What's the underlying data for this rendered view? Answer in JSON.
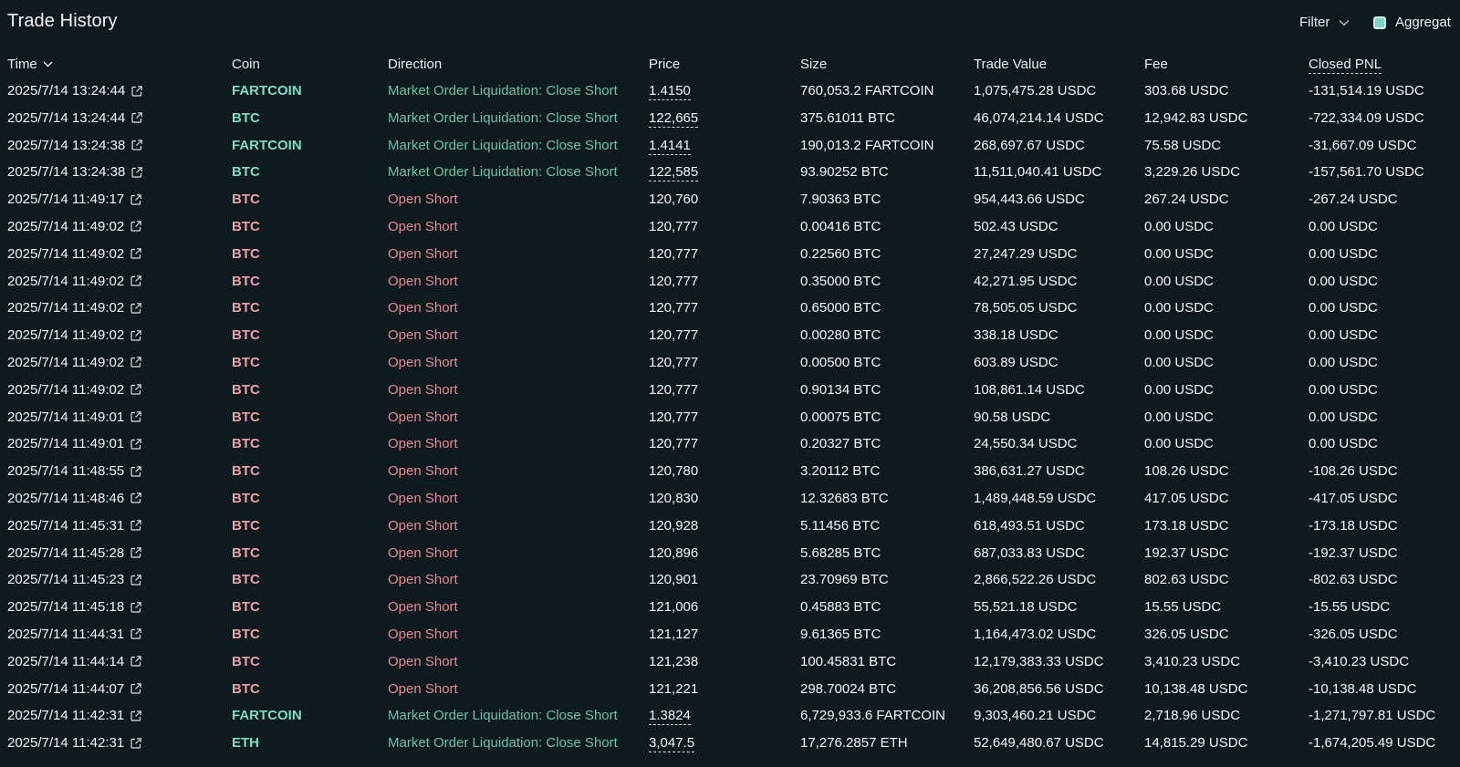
{
  "header": {
    "title": "Trade History",
    "filter_label": "Filter",
    "aggregate_label": "Aggregat",
    "aggregate_checked": true
  },
  "columns": {
    "time": "Time",
    "coin": "Coin",
    "direction": "Direction",
    "price": "Price",
    "size": "Size",
    "trade_value": "Trade Value",
    "fee": "Fee",
    "closed_pnl": "Closed PNL"
  },
  "colors": {
    "background": "#0f1a1f",
    "long_green": "#69c3a4",
    "short_red": "#e68a98",
    "checkbox": "#7ad6c8"
  },
  "rows": [
    {
      "time": "2025/7/14 13:24:44",
      "coin": "FARTCOIN",
      "side": "green",
      "direction": "Market Order Liquidation: Close Short",
      "price": "1.4150",
      "price_dashed": true,
      "size": "760,053.2 FARTCOIN",
      "trade_value": "1,075,475.28 USDC",
      "fee": "303.68 USDC",
      "pnl": "-131,514.19 USDC"
    },
    {
      "time": "2025/7/14 13:24:44",
      "coin": "BTC",
      "side": "green",
      "direction": "Market Order Liquidation: Close Short",
      "price": "122,665",
      "price_dashed": true,
      "size": "375.61011 BTC",
      "trade_value": "46,074,214.14 USDC",
      "fee": "12,942.83 USDC",
      "pnl": "-722,334.09 USDC"
    },
    {
      "time": "2025/7/14 13:24:38",
      "coin": "FARTCOIN",
      "side": "green",
      "direction": "Market Order Liquidation: Close Short",
      "price": "1.4141",
      "price_dashed": true,
      "size": "190,013.2 FARTCOIN",
      "trade_value": "268,697.67 USDC",
      "fee": "75.58 USDC",
      "pnl": "-31,667.09 USDC"
    },
    {
      "time": "2025/7/14 13:24:38",
      "coin": "BTC",
      "side": "green",
      "direction": "Market Order Liquidation: Close Short",
      "price": "122,585",
      "price_dashed": true,
      "size": "93.90252 BTC",
      "trade_value": "11,511,040.41 USDC",
      "fee": "3,229.26 USDC",
      "pnl": "-157,561.70 USDC"
    },
    {
      "time": "2025/7/14 11:49:17",
      "coin": "BTC",
      "side": "red",
      "direction": "Open Short",
      "price": "120,760",
      "price_dashed": false,
      "size": "7.90363 BTC",
      "trade_value": "954,443.66 USDC",
      "fee": "267.24 USDC",
      "pnl": "-267.24 USDC"
    },
    {
      "time": "2025/7/14 11:49:02",
      "coin": "BTC",
      "side": "red",
      "direction": "Open Short",
      "price": "120,777",
      "price_dashed": false,
      "size": "0.00416 BTC",
      "trade_value": "502.43 USDC",
      "fee": "0.00 USDC",
      "pnl": "0.00 USDC"
    },
    {
      "time": "2025/7/14 11:49:02",
      "coin": "BTC",
      "side": "red",
      "direction": "Open Short",
      "price": "120,777",
      "price_dashed": false,
      "size": "0.22560 BTC",
      "trade_value": "27,247.29 USDC",
      "fee": "0.00 USDC",
      "pnl": "0.00 USDC"
    },
    {
      "time": "2025/7/14 11:49:02",
      "coin": "BTC",
      "side": "red",
      "direction": "Open Short",
      "price": "120,777",
      "price_dashed": false,
      "size": "0.35000 BTC",
      "trade_value": "42,271.95 USDC",
      "fee": "0.00 USDC",
      "pnl": "0.00 USDC"
    },
    {
      "time": "2025/7/14 11:49:02",
      "coin": "BTC",
      "side": "red",
      "direction": "Open Short",
      "price": "120,777",
      "price_dashed": false,
      "size": "0.65000 BTC",
      "trade_value": "78,505.05 USDC",
      "fee": "0.00 USDC",
      "pnl": "0.00 USDC"
    },
    {
      "time": "2025/7/14 11:49:02",
      "coin": "BTC",
      "side": "red",
      "direction": "Open Short",
      "price": "120,777",
      "price_dashed": false,
      "size": "0.00280 BTC",
      "trade_value": "338.18 USDC",
      "fee": "0.00 USDC",
      "pnl": "0.00 USDC"
    },
    {
      "time": "2025/7/14 11:49:02",
      "coin": "BTC",
      "side": "red",
      "direction": "Open Short",
      "price": "120,777",
      "price_dashed": false,
      "size": "0.00500 BTC",
      "trade_value": "603.89 USDC",
      "fee": "0.00 USDC",
      "pnl": "0.00 USDC"
    },
    {
      "time": "2025/7/14 11:49:02",
      "coin": "BTC",
      "side": "red",
      "direction": "Open Short",
      "price": "120,777",
      "price_dashed": false,
      "size": "0.90134 BTC",
      "trade_value": "108,861.14 USDC",
      "fee": "0.00 USDC",
      "pnl": "0.00 USDC"
    },
    {
      "time": "2025/7/14 11:49:01",
      "coin": "BTC",
      "side": "red",
      "direction": "Open Short",
      "price": "120,777",
      "price_dashed": false,
      "size": "0.00075 BTC",
      "trade_value": "90.58 USDC",
      "fee": "0.00 USDC",
      "pnl": "0.00 USDC"
    },
    {
      "time": "2025/7/14 11:49:01",
      "coin": "BTC",
      "side": "red",
      "direction": "Open Short",
      "price": "120,777",
      "price_dashed": false,
      "size": "0.20327 BTC",
      "trade_value": "24,550.34 USDC",
      "fee": "0.00 USDC",
      "pnl": "0.00 USDC"
    },
    {
      "time": "2025/7/14 11:48:55",
      "coin": "BTC",
      "side": "red",
      "direction": "Open Short",
      "price": "120,780",
      "price_dashed": false,
      "size": "3.20112 BTC",
      "trade_value": "386,631.27 USDC",
      "fee": "108.26 USDC",
      "pnl": "-108.26 USDC"
    },
    {
      "time": "2025/7/14 11:48:46",
      "coin": "BTC",
      "side": "red",
      "direction": "Open Short",
      "price": "120,830",
      "price_dashed": false,
      "size": "12.32683 BTC",
      "trade_value": "1,489,448.59 USDC",
      "fee": "417.05 USDC",
      "pnl": "-417.05 USDC"
    },
    {
      "time": "2025/7/14 11:45:31",
      "coin": "BTC",
      "side": "red",
      "direction": "Open Short",
      "price": "120,928",
      "price_dashed": false,
      "size": "5.11456 BTC",
      "trade_value": "618,493.51 USDC",
      "fee": "173.18 USDC",
      "pnl": "-173.18 USDC"
    },
    {
      "time": "2025/7/14 11:45:28",
      "coin": "BTC",
      "side": "red",
      "direction": "Open Short",
      "price": "120,896",
      "price_dashed": false,
      "size": "5.68285 BTC",
      "trade_value": "687,033.83 USDC",
      "fee": "192.37 USDC",
      "pnl": "-192.37 USDC"
    },
    {
      "time": "2025/7/14 11:45:23",
      "coin": "BTC",
      "side": "red",
      "direction": "Open Short",
      "price": "120,901",
      "price_dashed": false,
      "size": "23.70969 BTC",
      "trade_value": "2,866,522.26 USDC",
      "fee": "802.63 USDC",
      "pnl": "-802.63 USDC"
    },
    {
      "time": "2025/7/14 11:45:18",
      "coin": "BTC",
      "side": "red",
      "direction": "Open Short",
      "price": "121,006",
      "price_dashed": false,
      "size": "0.45883 BTC",
      "trade_value": "55,521.18 USDC",
      "fee": "15.55 USDC",
      "pnl": "-15.55 USDC"
    },
    {
      "time": "2025/7/14 11:44:31",
      "coin": "BTC",
      "side": "red",
      "direction": "Open Short",
      "price": "121,127",
      "price_dashed": false,
      "size": "9.61365 BTC",
      "trade_value": "1,164,473.02 USDC",
      "fee": "326.05 USDC",
      "pnl": "-326.05 USDC"
    },
    {
      "time": "2025/7/14 11:44:14",
      "coin": "BTC",
      "side": "red",
      "direction": "Open Short",
      "price": "121,238",
      "price_dashed": false,
      "size": "100.45831 BTC",
      "trade_value": "12,179,383.33 USDC",
      "fee": "3,410.23 USDC",
      "pnl": "-3,410.23 USDC"
    },
    {
      "time": "2025/7/14 11:44:07",
      "coin": "BTC",
      "side": "red",
      "direction": "Open Short",
      "price": "121,221",
      "price_dashed": false,
      "size": "298.70024 BTC",
      "trade_value": "36,208,856.56 USDC",
      "fee": "10,138.48 USDC",
      "pnl": "-10,138.48 USDC"
    },
    {
      "time": "2025/7/14 11:42:31",
      "coin": "FARTCOIN",
      "side": "green",
      "direction": "Market Order Liquidation: Close Short",
      "price": "1.3824",
      "price_dashed": true,
      "size": "6,729,933.6 FARTCOIN",
      "trade_value": "9,303,460.21 USDC",
      "fee": "2,718.96 USDC",
      "pnl": "-1,271,797.81 USDC"
    },
    {
      "time": "2025/7/14 11:42:31",
      "coin": "ETH",
      "side": "green",
      "direction": "Market Order Liquidation: Close Short",
      "price": "3,047.5",
      "price_dashed": true,
      "size": "17,276.2857 ETH",
      "trade_value": "52,649,480.67 USDC",
      "fee": "14,815.29 USDC",
      "pnl": "-1,674,205.49 USDC"
    }
  ]
}
